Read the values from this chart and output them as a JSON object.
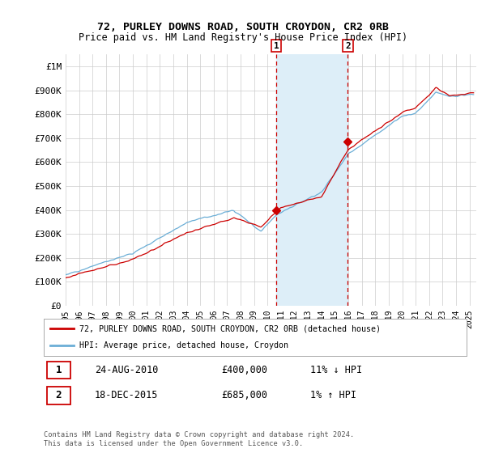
{
  "title1": "72, PURLEY DOWNS ROAD, SOUTH CROYDON, CR2 0RB",
  "title2": "Price paid vs. HM Land Registry's House Price Index (HPI)",
  "ylabel_ticks": [
    "£0",
    "£100K",
    "£200K",
    "£300K",
    "£400K",
    "£500K",
    "£600K",
    "£700K",
    "£800K",
    "£900K",
    "£1M"
  ],
  "ytick_vals": [
    0,
    100000,
    200000,
    300000,
    400000,
    500000,
    600000,
    700000,
    800000,
    900000,
    1000000
  ],
  "ylim": [
    0,
    1050000
  ],
  "xlim_start": 1995.0,
  "xlim_end": 2025.5,
  "sale1_x": 2010.646,
  "sale1_y": 400000,
  "sale1_label": "1",
  "sale2_x": 2015.963,
  "sale2_y": 685000,
  "sale2_label": "2",
  "shade_x1": 2010.646,
  "shade_x2": 2015.963,
  "legend_line1": "72, PURLEY DOWNS ROAD, SOUTH CROYDON, CR2 0RB (detached house)",
  "legend_line2": "HPI: Average price, detached house, Croydon",
  "table_row1_num": "1",
  "table_row1_date": "24-AUG-2010",
  "table_row1_price": "£400,000",
  "table_row1_hpi": "11% ↓ HPI",
  "table_row2_num": "2",
  "table_row2_date": "18-DEC-2015",
  "table_row2_price": "£685,000",
  "table_row2_hpi": "1% ↑ HPI",
  "footnote": "Contains HM Land Registry data © Crown copyright and database right 2024.\nThis data is licensed under the Open Government Licence v3.0.",
  "hpi_color": "#6baed6",
  "price_color": "#cc0000",
  "shade_color": "#ddeef8",
  "dashed_color": "#cc0000",
  "background_color": "#ffffff",
  "grid_color": "#cccccc"
}
